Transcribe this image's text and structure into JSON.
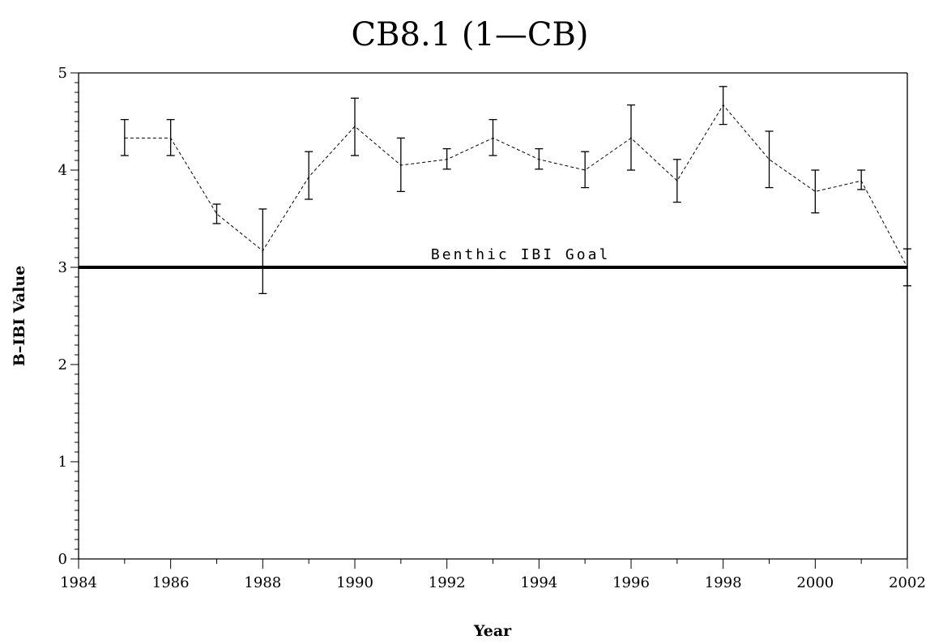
{
  "chart_data": {
    "type": "line",
    "title": "CB8.1 (1—CB)",
    "xlabel": "Year",
    "ylabel": "B–IBI Value",
    "xlim": [
      1984,
      2002
    ],
    "ylim": [
      0,
      5
    ],
    "x_ticks": [
      1984,
      1986,
      1988,
      1990,
      1992,
      1994,
      1996,
      1998,
      2000,
      2002
    ],
    "y_ticks": [
      0,
      1,
      2,
      3,
      4,
      5
    ],
    "grid": false,
    "series": [
      {
        "line_style": "dashed",
        "points": [
          {
            "x": 1985,
            "y": 4.33,
            "low": 4.15,
            "high": 4.52
          },
          {
            "x": 1986,
            "y": 4.33,
            "low": 4.15,
            "high": 4.52
          },
          {
            "x": 1987,
            "y": 3.55,
            "low": 3.45,
            "high": 3.65
          },
          {
            "x": 1988,
            "y": 3.17,
            "low": 2.73,
            "high": 3.6
          },
          {
            "x": 1989,
            "y": 3.93,
            "low": 3.7,
            "high": 4.19
          },
          {
            "x": 1990,
            "y": 4.45,
            "low": 4.15,
            "high": 4.74
          },
          {
            "x": 1991,
            "y": 4.05,
            "low": 3.78,
            "high": 4.33
          },
          {
            "x": 1992,
            "y": 4.11,
            "low": 4.01,
            "high": 4.22
          },
          {
            "x": 1993,
            "y": 4.33,
            "low": 4.15,
            "high": 4.52
          },
          {
            "x": 1994,
            "y": 4.11,
            "low": 4.01,
            "high": 4.22
          },
          {
            "x": 1995,
            "y": 4.0,
            "low": 3.82,
            "high": 4.19
          },
          {
            "x": 1996,
            "y": 4.33,
            "low": 4.0,
            "high": 4.67
          },
          {
            "x": 1997,
            "y": 3.89,
            "low": 3.67,
            "high": 4.11
          },
          {
            "x": 1998,
            "y": 4.67,
            "low": 4.47,
            "high": 4.86
          },
          {
            "x": 1999,
            "y": 4.11,
            "low": 3.82,
            "high": 4.4
          },
          {
            "x": 2000,
            "y": 3.78,
            "low": 3.56,
            "high": 4.0
          },
          {
            "x": 2001,
            "y": 3.89,
            "low": 3.8,
            "high": 4.0
          },
          {
            "x": 2002,
            "y": 3.0,
            "low": 2.81,
            "high": 3.19
          }
        ]
      }
    ],
    "reference_line": {
      "y": 3,
      "label": "Benthic IBI Goal"
    },
    "colors": {
      "axis": "#000000",
      "series": "#000000",
      "background": "#ffffff"
    }
  }
}
